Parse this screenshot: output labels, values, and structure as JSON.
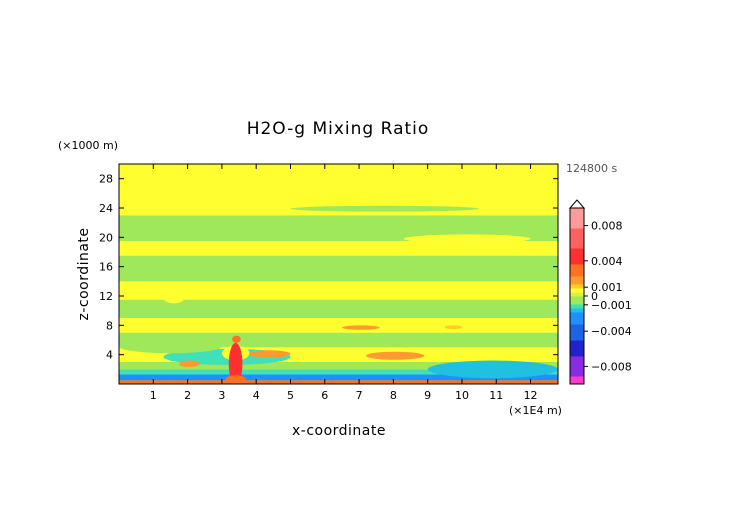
{
  "chart_data": {
    "type": "heatmap",
    "title": "H2O-g Mixing Ratio",
    "xlabel": "x-coordinate",
    "ylabel": "z-coordinate",
    "x_unit": "(×1E4 m)",
    "y_unit": "(×1000 m)",
    "time_label": "124800 s",
    "xlim": [
      0,
      12.8
    ],
    "ylim": [
      0,
      30
    ],
    "x_ticks": [
      1,
      2,
      3,
      4,
      5,
      6,
      7,
      8,
      9,
      10,
      11,
      12
    ],
    "y_ticks": [
      4,
      8,
      12,
      16,
      20,
      24,
      28
    ],
    "grid": false,
    "legend": "colorbar-right",
    "colorbar_range": [
      -0.01,
      0.01
    ],
    "colorbar_ticks": [
      {
        "value": 0.008,
        "label": "0.008"
      },
      {
        "value": 0.004,
        "label": "0.004"
      },
      {
        "value": 0.001,
        "label": "0.001"
      },
      {
        "value": 0,
        "label": "0"
      },
      {
        "value": -0.001,
        "label": "−0.001"
      },
      {
        "value": -0.004,
        "label": "−0.004"
      },
      {
        "value": -0.008,
        "label": "−0.008"
      }
    ],
    "background_value": 0.0005,
    "bands": [
      {
        "z0": 0.0,
        "z1": 0.5,
        "value": 0.003
      },
      {
        "z0": 0.5,
        "z1": 1.3,
        "value": -0.0025
      },
      {
        "z0": 1.3,
        "z1": 2.0,
        "value": -0.001
      },
      {
        "z0": 2.0,
        "z1": 3.0,
        "value": -0.0005
      },
      {
        "z0": 3.0,
        "z1": 5.0,
        "value": 0.0005
      },
      {
        "z0": 5.0,
        "z1": 7.0,
        "value": -0.0004
      },
      {
        "z0": 7.0,
        "z1": 9.0,
        "value": 0.0005
      },
      {
        "z0": 9.0,
        "z1": 11.5,
        "value": -0.0004
      },
      {
        "z0": 11.5,
        "z1": 14.0,
        "value": 0.0005
      },
      {
        "z0": 14.0,
        "z1": 17.5,
        "value": -0.0004
      },
      {
        "z0": 17.5,
        "z1": 19.5,
        "value": 0.0005
      },
      {
        "z0": 19.5,
        "z1": 23.0,
        "value": -0.0004
      },
      {
        "z0": 23.0,
        "z1": 30.0,
        "value": 0.0005
      }
    ],
    "features": [
      {
        "x0": 1.3,
        "x1": 5.0,
        "z0": 2.6,
        "z1": 4.8,
        "value": -0.001
      },
      {
        "x0": 9.0,
        "x1": 12.8,
        "z0": 0.8,
        "z1": 3.2,
        "value": -0.0015
      },
      {
        "x0": 7.2,
        "x1": 8.9,
        "z0": 3.3,
        "z1": 4.4,
        "value": 0.002
      },
      {
        "x0": 3.75,
        "x1": 5.0,
        "z0": 3.6,
        "z1": 4.6,
        "value": 0.002
      },
      {
        "x0": 1.75,
        "x1": 2.35,
        "z0": 2.3,
        "z1": 3.2,
        "value": 0.002
      },
      {
        "x0": 6.5,
        "x1": 7.6,
        "z0": 7.4,
        "z1": 8.0,
        "value": 0.002
      },
      {
        "x0": 9.5,
        "x1": 10.0,
        "z0": 7.5,
        "z1": 8.0,
        "value": 0.0015
      },
      {
        "x0": 3.0,
        "x1": 3.8,
        "z0": 3.2,
        "z1": 5.2,
        "value": 0.0005
      },
      {
        "x0": 0.0,
        "x1": 3.0,
        "z0": 4.2,
        "z1": 6.0,
        "value": -0.0004
      },
      {
        "x0": 1.3,
        "x1": 1.9,
        "z0": 11.0,
        "z1": 12.4,
        "value": 0.0005
      },
      {
        "x0": 5.4,
        "x1": 6.9,
        "z0": 11.8,
        "z1": 12.6,
        "value": 0.0005
      },
      {
        "x0": 8.4,
        "x1": 9.5,
        "z0": 12.8,
        "z1": 13.8,
        "value": 0.0005
      },
      {
        "x0": 8.3,
        "x1": 12.0,
        "z0": 19.2,
        "z1": 20.4,
        "value": 0.0005
      },
      {
        "x0": 0.0,
        "x1": 1.4,
        "z0": 19.8,
        "z1": 20.8,
        "value": -0.0004
      },
      {
        "x0": 5.0,
        "x1": 10.5,
        "z0": 23.5,
        "z1": 24.3,
        "value": -0.0004
      },
      {
        "x0": 3.2,
        "x1": 3.6,
        "z0": 0.0,
        "z1": 5.6,
        "value": 0.004
      },
      {
        "x0": 3.3,
        "x1": 3.55,
        "z0": 5.6,
        "z1": 6.6,
        "value": 0.003
      },
      {
        "x0": 3.1,
        "x1": 3.7,
        "z0": 0.0,
        "z1": 1.2,
        "value": 0.003
      }
    ]
  }
}
